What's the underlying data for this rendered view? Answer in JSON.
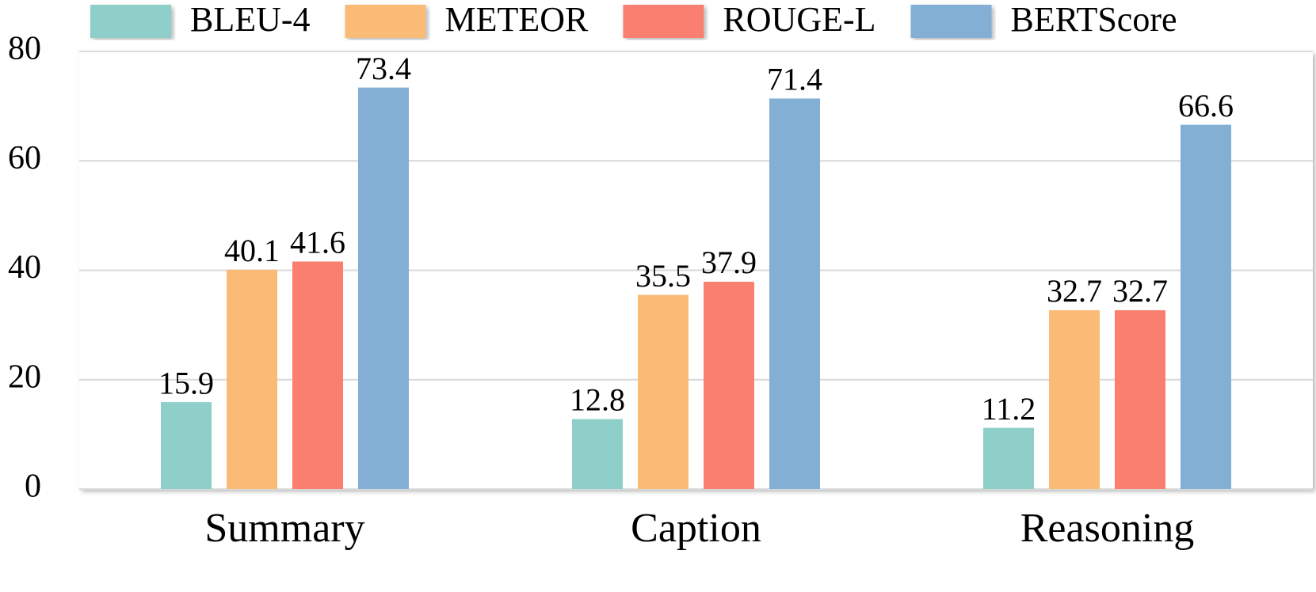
{
  "chart_data": {
    "type": "bar",
    "categories": [
      "Summary",
      "Caption",
      "Reasoning"
    ],
    "series": [
      {
        "name": "BLEU-4",
        "color": "#8ecfc9",
        "values": [
          15.9,
          12.8,
          11.2
        ]
      },
      {
        "name": "METEOR",
        "color": "#f9bb76",
        "values": [
          40.1,
          35.5,
          32.7
        ]
      },
      {
        "name": "ROUGE-L",
        "color": "#fa7f6f",
        "values": [
          41.6,
          37.9,
          32.7
        ]
      },
      {
        "name": "BERTScore",
        "color": "#82afd3",
        "values": [
          73.4,
          71.4,
          66.6
        ]
      }
    ],
    "ylim": [
      0,
      80
    ],
    "yticks": [
      0,
      20,
      40,
      60,
      80
    ],
    "grid": true,
    "legend": "top"
  }
}
